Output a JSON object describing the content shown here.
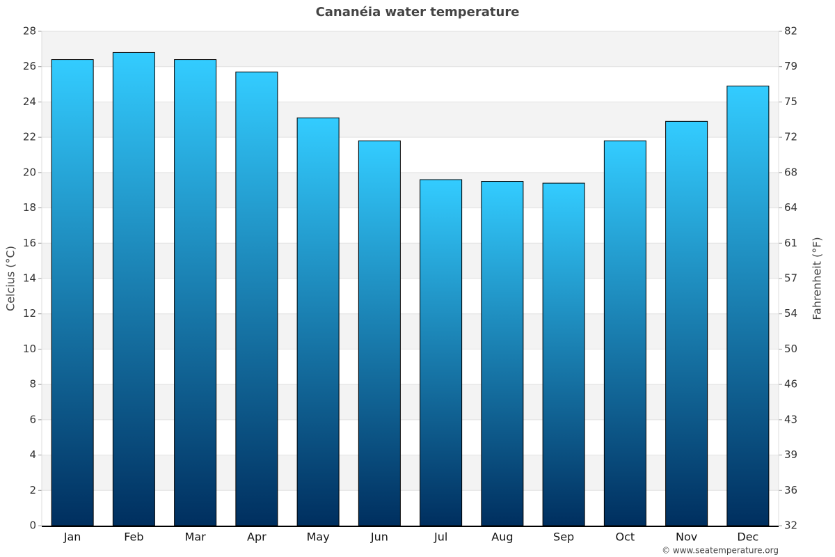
{
  "chart_data": {
    "type": "bar",
    "title": "Cananéia water temperature",
    "y_label": "Celcius (°C)",
    "y2_label": "Fahrenheit (°F)",
    "credit": "© www.seatemperature.org",
    "categories": [
      "Jan",
      "Feb",
      "Mar",
      "Apr",
      "May",
      "Jun",
      "Jul",
      "Aug",
      "Sep",
      "Oct",
      "Nov",
      "Dec"
    ],
    "values": [
      26.4,
      26.8,
      26.4,
      25.7,
      23.1,
      21.8,
      19.6,
      19.5,
      19.4,
      21.8,
      22.9,
      24.9
    ],
    "color": "#33ccff",
    "color_bottom": "#002f5f",
    "ylim": [
      0,
      28
    ],
    "yticks": [
      0,
      2,
      4,
      6,
      8,
      10,
      12,
      14,
      16,
      18,
      20,
      22,
      24,
      26,
      28
    ],
    "y2lim": [
      32,
      82.4
    ],
    "y2ticks": [
      32,
      {
        "value": 35.6,
        "label": "36"
      },
      {
        "value": 39.2,
        "label": "39"
      },
      {
        "value": 42.8,
        "label": "43"
      },
      {
        "value": 46.4,
        "label": "46"
      },
      50,
      {
        "value": 53.6,
        "label": "54"
      },
      {
        "value": 57.2,
        "label": "57"
      },
      {
        "value": 60.8,
        "label": "61"
      },
      {
        "value": 64.4,
        "label": "64"
      },
      68,
      {
        "value": 71.6,
        "label": "72"
      },
      {
        "value": 75.2,
        "label": "75"
      },
      {
        "value": 78.8,
        "label": "79"
      },
      {
        "value": 82.4,
        "label": "82"
      }
    ],
    "grid": true
  }
}
